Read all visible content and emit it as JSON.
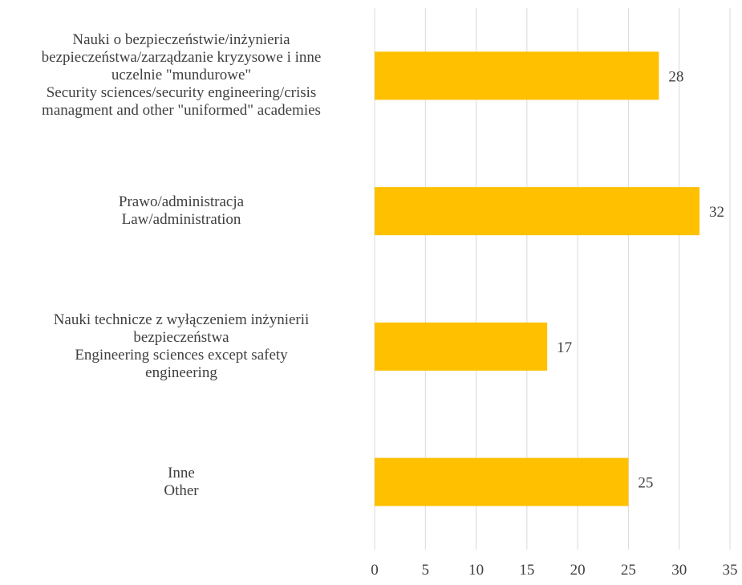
{
  "chart_data": {
    "type": "bar",
    "orientation": "horizontal",
    "title": "",
    "xlabel": "",
    "ylabel": "",
    "categories": [
      [
        "Nauki o bezpieczeństwie/inżynieria",
        "bezpieczeństwa/zarządzanie kryzysowe i inne",
        "uczelnie \"mundurowe\"",
        "Security sciences/security engineering/crisis",
        "managment and other \"uniformed\" academies"
      ],
      [
        "Prawo/administracja",
        "Law/administration"
      ],
      [
        "Nauki technicze z wyłączeniem inżynierii",
        "bezpieczeństwa",
        "Engineering sciences except safety",
        "engineering"
      ],
      [
        "Inne",
        "Other"
      ]
    ],
    "values": [
      28,
      32,
      17,
      25
    ],
    "data_labels": [
      "28",
      "32",
      "17",
      "25"
    ],
    "xlim": [
      0,
      35
    ],
    "xticks": [
      0,
      5,
      10,
      15,
      20,
      25,
      30,
      35
    ],
    "xtick_labels": [
      "0",
      "5",
      "10",
      "15",
      "20",
      "25",
      "30",
      "35"
    ],
    "grid": "vertical",
    "legend": "none",
    "colors": {
      "bar": "#FFC000",
      "grid": "#D9D9D9",
      "text": "#404040"
    }
  }
}
